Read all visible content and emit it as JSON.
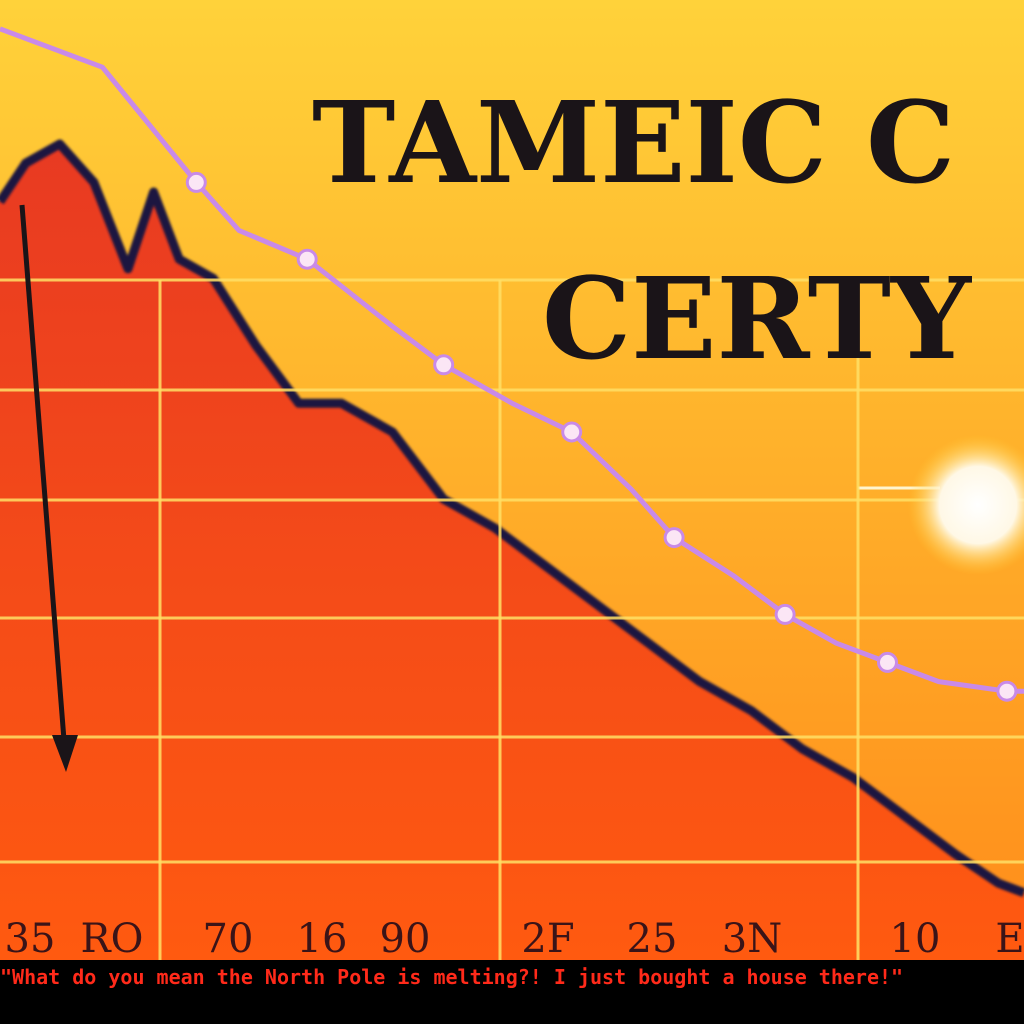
{
  "chart_data": {
    "type": "line",
    "title_line1": "TAMEIC C",
    "title_line2": "CERTY",
    "tick_labels": [
      "35",
      "RO",
      "70",
      "16",
      "90",
      "2F",
      "25",
      "3N",
      "10",
      "E"
    ],
    "line_series": {
      "x": [
        0,
        0.6,
        1.15,
        1.4,
        1.8,
        2.3,
        2.6,
        3.0,
        3.35,
        3.7,
        3.95,
        4.3,
        4.6,
        4.9,
        5.2,
        5.5,
        5.9,
        6.0
      ],
      "values": [
        97,
        93,
        81,
        76,
        73,
        66,
        62,
        58,
        55,
        49,
        44,
        40,
        36,
        33,
        31,
        29,
        28,
        28
      ]
    },
    "area_series": {
      "x": [
        0,
        0.15,
        0.35,
        0.55,
        0.75,
        0.9,
        1.05,
        1.25,
        1.5,
        1.75,
        2.0,
        2.3,
        2.6,
        2.9,
        3.2,
        3.5,
        3.8,
        4.1,
        4.4,
        4.7,
        5.0,
        5.3,
        5.6,
        5.85,
        6.0
      ],
      "values": [
        79,
        83,
        85,
        81,
        72,
        80,
        73,
        71,
        64,
        58,
        58,
        55,
        48,
        45,
        41,
        37,
        33,
        29,
        26,
        22,
        19,
        15,
        11,
        8,
        7
      ]
    },
    "xlim": [
      0,
      6
    ],
    "ylim": [
      0,
      100
    ],
    "colors": {
      "background_top": "#ffd23a",
      "background_bottom": "#ff8c1a",
      "area_top": "#e83a22",
      "area_bottom": "#ff5a10",
      "area_edge": "#1a1440",
      "line": "#c98ae8",
      "grid": "#ffe066",
      "title": "#1a1418",
      "sun": "#fff8e6"
    }
  },
  "caption": "\"What do you mean the North Pole is melting?! I just bought a house there!\""
}
